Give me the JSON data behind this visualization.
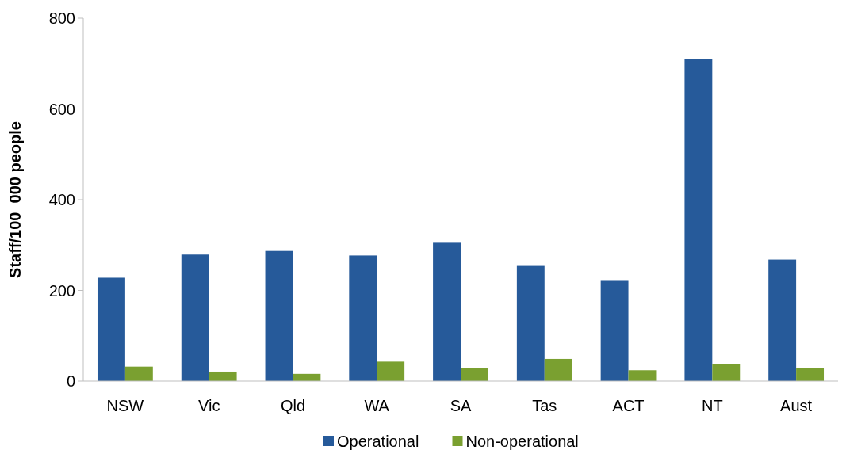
{
  "chart_data": {
    "type": "bar",
    "ylabel": "Staff/100  000 people",
    "categories": [
      "NSW",
      "Vic",
      "Qld",
      "WA",
      "SA",
      "Tas",
      "ACT",
      "NT",
      "Aust"
    ],
    "series": [
      {
        "name": "Operational",
        "color": "#265a9a",
        "values": [
          228,
          279,
          287,
          277,
          305,
          254,
          221,
          710,
          268
        ]
      },
      {
        "name": "Non-operational",
        "color": "#7aa030",
        "values": [
          32,
          21,
          16,
          43,
          28,
          49,
          24,
          37,
          28
        ]
      }
    ],
    "ylim": [
      0,
      800
    ],
    "yticks": [
      0,
      200,
      400,
      600,
      800
    ],
    "grid": false,
    "legend": "bottom"
  }
}
